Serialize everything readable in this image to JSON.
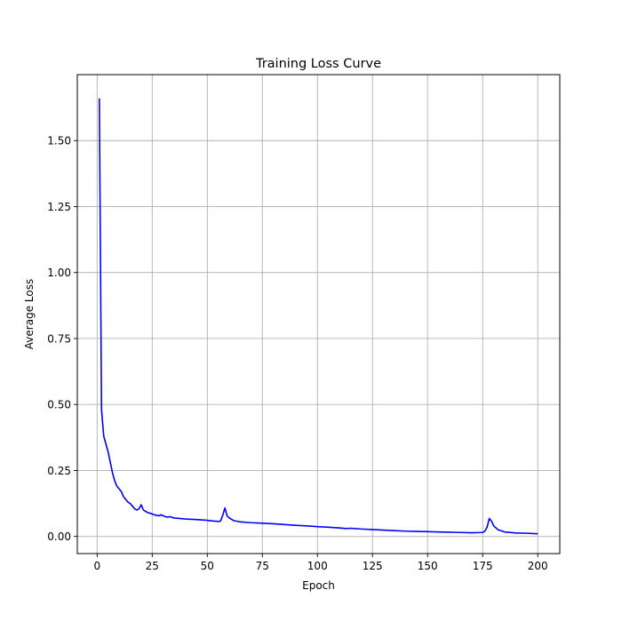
{
  "chart_data": {
    "type": "line",
    "title": "Training Loss Curve",
    "xlabel": "Epoch",
    "ylabel": "Average Loss",
    "xlim": [
      -9,
      210
    ],
    "ylim": [
      -0.065,
      1.75
    ],
    "grid": true,
    "x_ticks": [
      0,
      25,
      50,
      75,
      100,
      125,
      150,
      175,
      200
    ],
    "x_tick_labels": [
      "0",
      "25",
      "50",
      "75",
      "100",
      "125",
      "150",
      "175",
      "200"
    ],
    "y_ticks": [
      0.0,
      0.25,
      0.5,
      0.75,
      1.0,
      1.25,
      1.5
    ],
    "y_tick_labels": [
      "0.00",
      "0.25",
      "0.50",
      "0.75",
      "1.00",
      "1.25",
      "1.50"
    ],
    "series": [
      {
        "name": "Average Loss",
        "color": "#0000ff",
        "x": [
          1,
          2,
          3,
          4,
          5,
          6,
          7,
          8,
          9,
          10,
          11,
          12,
          13,
          14,
          15,
          16,
          17,
          18,
          19,
          20,
          21,
          22,
          23,
          24,
          25,
          26,
          27,
          28,
          29,
          30,
          31,
          32,
          33,
          34,
          35,
          40,
          45,
          50,
          52,
          55,
          56,
          57,
          58,
          59,
          60,
          62,
          65,
          70,
          75,
          80,
          85,
          90,
          95,
          100,
          105,
          110,
          113,
          115,
          120,
          125,
          130,
          135,
          140,
          145,
          150,
          155,
          160,
          165,
          170,
          175,
          176,
          177,
          178,
          179,
          180,
          182,
          185,
          190,
          195,
          200
        ],
        "values": [
          1.66,
          0.48,
          0.38,
          0.35,
          0.32,
          0.28,
          0.24,
          0.21,
          0.19,
          0.18,
          0.17,
          0.15,
          0.14,
          0.13,
          0.125,
          0.115,
          0.105,
          0.1,
          0.105,
          0.12,
          0.1,
          0.095,
          0.09,
          0.088,
          0.085,
          0.082,
          0.08,
          0.078,
          0.082,
          0.078,
          0.075,
          0.073,
          0.075,
          0.072,
          0.07,
          0.066,
          0.064,
          0.061,
          0.059,
          0.057,
          0.058,
          0.08,
          0.108,
          0.078,
          0.07,
          0.06,
          0.055,
          0.052,
          0.05,
          0.048,
          0.045,
          0.042,
          0.04,
          0.037,
          0.035,
          0.032,
          0.03,
          0.031,
          0.028,
          0.026,
          0.024,
          0.022,
          0.02,
          0.019,
          0.018,
          0.017,
          0.016,
          0.015,
          0.014,
          0.015,
          0.02,
          0.035,
          0.068,
          0.058,
          0.04,
          0.025,
          0.017,
          0.013,
          0.012,
          0.01
        ]
      }
    ]
  }
}
